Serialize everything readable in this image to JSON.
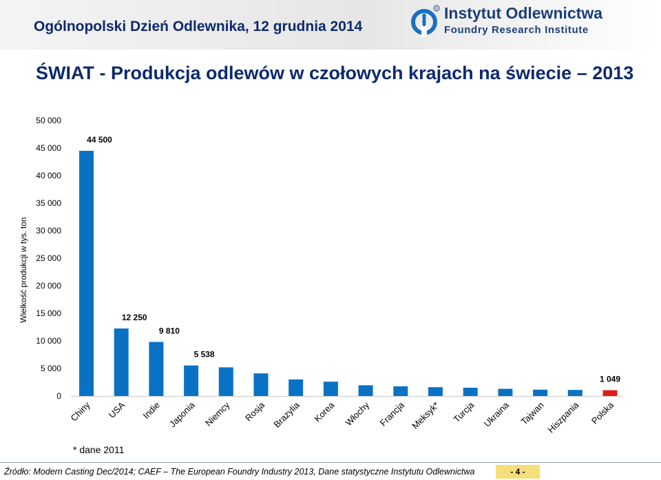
{
  "header": {
    "event_title": "Ogólnopolski Dzień Odlewnika, 12 grudnia 2014",
    "logo_name": "Instytut Odlewnictwa",
    "logo_subtitle": "Foundry Research Institute",
    "logo_registered": "®"
  },
  "footnote": "* dane 2011",
  "footer": {
    "source": "Źródło: Modern Casting Dec/2014; CAEF – The European Foundry Industry 2013, Dane statystyczne Instytutu Odlewnictwa",
    "page_number": "- 4 -"
  },
  "colors": {
    "bar": "#0a72c4",
    "highlight_bar": "#e01b1b",
    "title": "#0d2a6e"
  },
  "chart_data": {
    "type": "bar",
    "title": "ŚWIAT - Produkcja odlewów w czołowych krajach na świecie – 2013",
    "ylabel": "Wielkość produkcji w tys. ton",
    "xlabel": "",
    "ylim": [
      0,
      50000
    ],
    "yticks": [
      0,
      5000,
      10000,
      15000,
      20000,
      25000,
      30000,
      35000,
      40000,
      45000,
      50000
    ],
    "ytick_labels": [
      "0",
      "5 000",
      "10 000",
      "15 000",
      "20 000",
      "25 000",
      "30 000",
      "35 000",
      "40 000",
      "45 000",
      "50 000"
    ],
    "grid": false,
    "categories": [
      "Chiny",
      "USA",
      "Indie",
      "Japonia",
      "Niemcy",
      "Rosja",
      "Brazylia",
      "Korea",
      "Włochy",
      "Francja",
      "Meksyk*",
      "Turcja",
      "Ukraina",
      "Tajwan",
      "Hiszpania",
      "Polska"
    ],
    "values": [
      44500,
      12250,
      9810,
      5538,
      5200,
      4100,
      3000,
      2600,
      1950,
      1750,
      1600,
      1500,
      1300,
      1150,
      1100,
      1049
    ],
    "highlight": "Polska",
    "data_labels": [
      {
        "category": "Chiny",
        "text": "44 500"
      },
      {
        "category": "USA",
        "text": "12 250"
      },
      {
        "category": "Indie",
        "text": "9 810"
      },
      {
        "category": "Japonia",
        "text": "5 538"
      },
      {
        "category": "Polska",
        "text": "1 049"
      }
    ]
  }
}
